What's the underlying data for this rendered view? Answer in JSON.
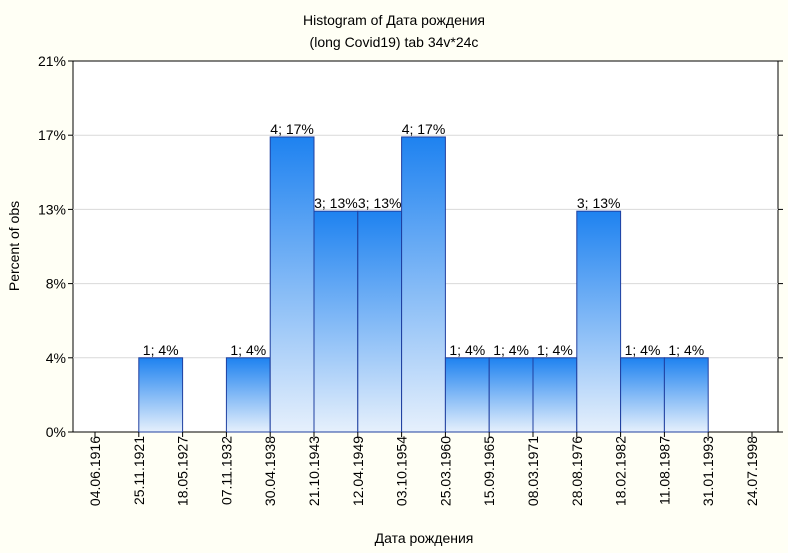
{
  "chart_data": {
    "type": "bar",
    "title": "Histogram of Дата рождения",
    "subtitle": "(long Covid19) tab 34v*24c",
    "xlabel": "Дата рождения",
    "ylabel": "Percent of obs",
    "ylim": [
      0,
      21
    ],
    "y_ticks": [
      {
        "value": 0,
        "label": "0%"
      },
      {
        "value": 4.2,
        "label": "4%"
      },
      {
        "value": 8.4,
        "label": "8%"
      },
      {
        "value": 12.6,
        "label": "13%"
      },
      {
        "value": 16.8,
        "label": "17%"
      },
      {
        "value": 21,
        "label": "21%"
      }
    ],
    "x_ticks": [
      "04.06.1916",
      "25.11.1921",
      "18.05.1927",
      "07.11.1932",
      "30.04.1938",
      "21.10.1943",
      "12.04.1949",
      "03.10.1954",
      "25.03.1960",
      "15.09.1965",
      "08.03.1971",
      "28.08.1976",
      "18.02.1982",
      "11.08.1987",
      "31.01.1993",
      "24.07.1998"
    ],
    "bins": [
      {
        "start": "04.06.1916",
        "end": "25.11.1921",
        "count": 0,
        "percent": 0,
        "label": ""
      },
      {
        "start": "25.11.1921",
        "end": "18.05.1927",
        "count": 1,
        "percent": 4.2,
        "label": "1; 4%"
      },
      {
        "start": "18.05.1927",
        "end": "07.11.1932",
        "count": 0,
        "percent": 0,
        "label": ""
      },
      {
        "start": "07.11.1932",
        "end": "30.04.1938",
        "count": 1,
        "percent": 4.2,
        "label": "1; 4%"
      },
      {
        "start": "30.04.1938",
        "end": "21.10.1943",
        "count": 4,
        "percent": 16.7,
        "label": "4; 17%"
      },
      {
        "start": "21.10.1943",
        "end": "12.04.1949",
        "count": 3,
        "percent": 12.5,
        "label": "3; 13%"
      },
      {
        "start": "12.04.1949",
        "end": "03.10.1954",
        "count": 3,
        "percent": 12.5,
        "label": "3; 13%"
      },
      {
        "start": "03.10.1954",
        "end": "25.03.1960",
        "count": 4,
        "percent": 16.7,
        "label": "4; 17%"
      },
      {
        "start": "25.03.1960",
        "end": "15.09.1965",
        "count": 1,
        "percent": 4.2,
        "label": "1; 4%"
      },
      {
        "start": "15.09.1965",
        "end": "08.03.1971",
        "count": 1,
        "percent": 4.2,
        "label": "1; 4%"
      },
      {
        "start": "08.03.1971",
        "end": "28.08.1976",
        "count": 1,
        "percent": 4.2,
        "label": "1; 4%"
      },
      {
        "start": "28.08.1976",
        "end": "18.02.1982",
        "count": 3,
        "percent": 12.5,
        "label": "3; 13%"
      },
      {
        "start": "18.02.1982",
        "end": "11.08.1987",
        "count": 1,
        "percent": 4.2,
        "label": "1; 4%"
      },
      {
        "start": "11.08.1987",
        "end": "31.01.1993",
        "count": 1,
        "percent": 4.2,
        "label": "1; 4%"
      },
      {
        "start": "31.01.1993",
        "end": "24.07.1998",
        "count": 0,
        "percent": 0,
        "label": ""
      }
    ],
    "grid": true,
    "legend": "none",
    "colors": {
      "background": "#fffff5",
      "plot_area": "#ffffff",
      "bar_top": "#1e82f0",
      "bar_bottom": "#e6f0fc",
      "bar_border": "#1f3fa0",
      "grid": "#d9d9d9"
    }
  }
}
